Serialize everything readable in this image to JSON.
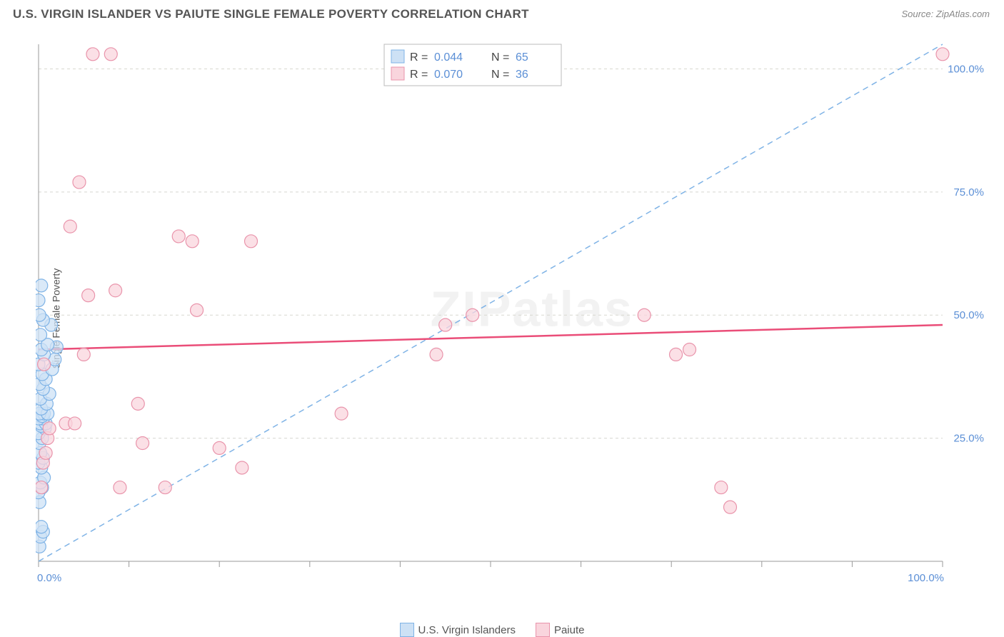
{
  "title": "U.S. VIRGIN ISLANDER VS PAIUTE SINGLE FEMALE POVERTY CORRELATION CHART",
  "source": "Source: ZipAtlas.com",
  "ylabel": "Single Female Poverty",
  "watermark": "ZIPatlas",
  "chart": {
    "type": "scatter",
    "xlim": [
      0,
      100
    ],
    "ylim": [
      0,
      105
    ],
    "xticks": [
      0,
      10,
      20,
      30,
      40,
      50,
      60,
      70,
      80,
      90,
      100
    ],
    "yticks": [
      25,
      50,
      75,
      100
    ],
    "xticklabels": {
      "0": "0.0%",
      "100": "100.0%"
    },
    "yticklabels": {
      "25": "25.0%",
      "50": "50.0%",
      "75": "75.0%",
      "100": "100.0%"
    },
    "background_color": "#ffffff",
    "grid_color": "#d8d8d0",
    "axis_color": "#999999",
    "label_color": "#5b8fd6",
    "text_color": "#555555"
  },
  "series": [
    {
      "name": "U.S. Virgin Islanders",
      "fill": "#cde1f5",
      "stroke": "#7fb3e6",
      "marker_radius": 9,
      "marker_opacity": 0.75,
      "R": "0.044",
      "N": "65",
      "trend": {
        "y0": 0,
        "y1": 105,
        "color": "#7fb3e6",
        "width": 1.5,
        "dash": true
      },
      "points": [
        [
          0.1,
          3
        ],
        [
          0.2,
          5
        ],
        [
          0.5,
          6
        ],
        [
          0.3,
          7
        ],
        [
          0.1,
          12
        ],
        [
          0.0,
          14
        ],
        [
          0.4,
          15
        ],
        [
          0.2,
          16
        ],
        [
          0.6,
          17
        ],
        [
          0.3,
          19
        ],
        [
          0.0,
          20
        ],
        [
          0.5,
          21
        ],
        [
          0.2,
          22
        ],
        [
          0.1,
          24
        ],
        [
          0.4,
          25
        ],
        [
          0.0,
          26
        ],
        [
          0.7,
          27
        ],
        [
          0.3,
          27.5
        ],
        [
          0.2,
          28
        ],
        [
          0.8,
          28
        ],
        [
          0.5,
          29
        ],
        [
          0.0,
          29
        ],
        [
          0.4,
          29.5
        ],
        [
          0.6,
          30
        ],
        [
          0.1,
          30
        ],
        [
          1.0,
          30
        ],
        [
          0.3,
          31
        ],
        [
          0.9,
          32
        ],
        [
          0.2,
          33
        ],
        [
          1.2,
          34
        ],
        [
          0.5,
          35
        ],
        [
          0.1,
          36
        ],
        [
          0.8,
          37
        ],
        [
          0.4,
          38
        ],
        [
          1.5,
          39
        ],
        [
          0.0,
          40
        ],
        [
          1.8,
          41
        ],
        [
          0.6,
          42
        ],
        [
          0.3,
          43
        ],
        [
          2.0,
          43.5
        ],
        [
          1.0,
          44
        ],
        [
          0.2,
          46
        ],
        [
          1.4,
          48
        ],
        [
          0.5,
          49
        ],
        [
          0.1,
          50
        ],
        [
          0.0,
          53
        ],
        [
          0.3,
          56
        ]
      ]
    },
    {
      "name": "Paiute",
      "fill": "#f9d5dd",
      "stroke": "#e994ab",
      "marker_radius": 9,
      "marker_opacity": 0.75,
      "R": "0.070",
      "N": "36",
      "trend": {
        "y0": 43,
        "y1": 48,
        "color": "#ea4d78",
        "width": 2.5,
        "dash": false
      },
      "points": [
        [
          0.5,
          20
        ],
        [
          0.8,
          22
        ],
        [
          1.0,
          25
        ],
        [
          1.2,
          27
        ],
        [
          0.3,
          15
        ],
        [
          0.6,
          40
        ],
        [
          3.0,
          28
        ],
        [
          4.0,
          28
        ],
        [
          6.0,
          103
        ],
        [
          8.0,
          103
        ],
        [
          4.5,
          77
        ],
        [
          3.5,
          68
        ],
        [
          5.5,
          54
        ],
        [
          5.0,
          42
        ],
        [
          8.5,
          55
        ],
        [
          9.0,
          15
        ],
        [
          11.0,
          32
        ],
        [
          11.5,
          24
        ],
        [
          14.0,
          15
        ],
        [
          15.5,
          66
        ],
        [
          17.0,
          65
        ],
        [
          17.5,
          51
        ],
        [
          20.0,
          23
        ],
        [
          22.5,
          19
        ],
        [
          23.5,
          65
        ],
        [
          33.5,
          30
        ],
        [
          44.0,
          42
        ],
        [
          45.0,
          48
        ],
        [
          48.0,
          50
        ],
        [
          67.0,
          50
        ],
        [
          70.5,
          42
        ],
        [
          72.0,
          43
        ],
        [
          75.5,
          15
        ],
        [
          76.5,
          11
        ],
        [
          100.0,
          103
        ]
      ]
    }
  ],
  "top_legend": {
    "R_label": "R = ",
    "N_label": "N = "
  },
  "bottom_legend": {
    "items": [
      {
        "label": "U.S. Virgin Islanders",
        "fill": "#cde1f5",
        "stroke": "#7fb3e6"
      },
      {
        "label": "Paiute",
        "fill": "#f9d5dd",
        "stroke": "#e994ab"
      }
    ]
  }
}
